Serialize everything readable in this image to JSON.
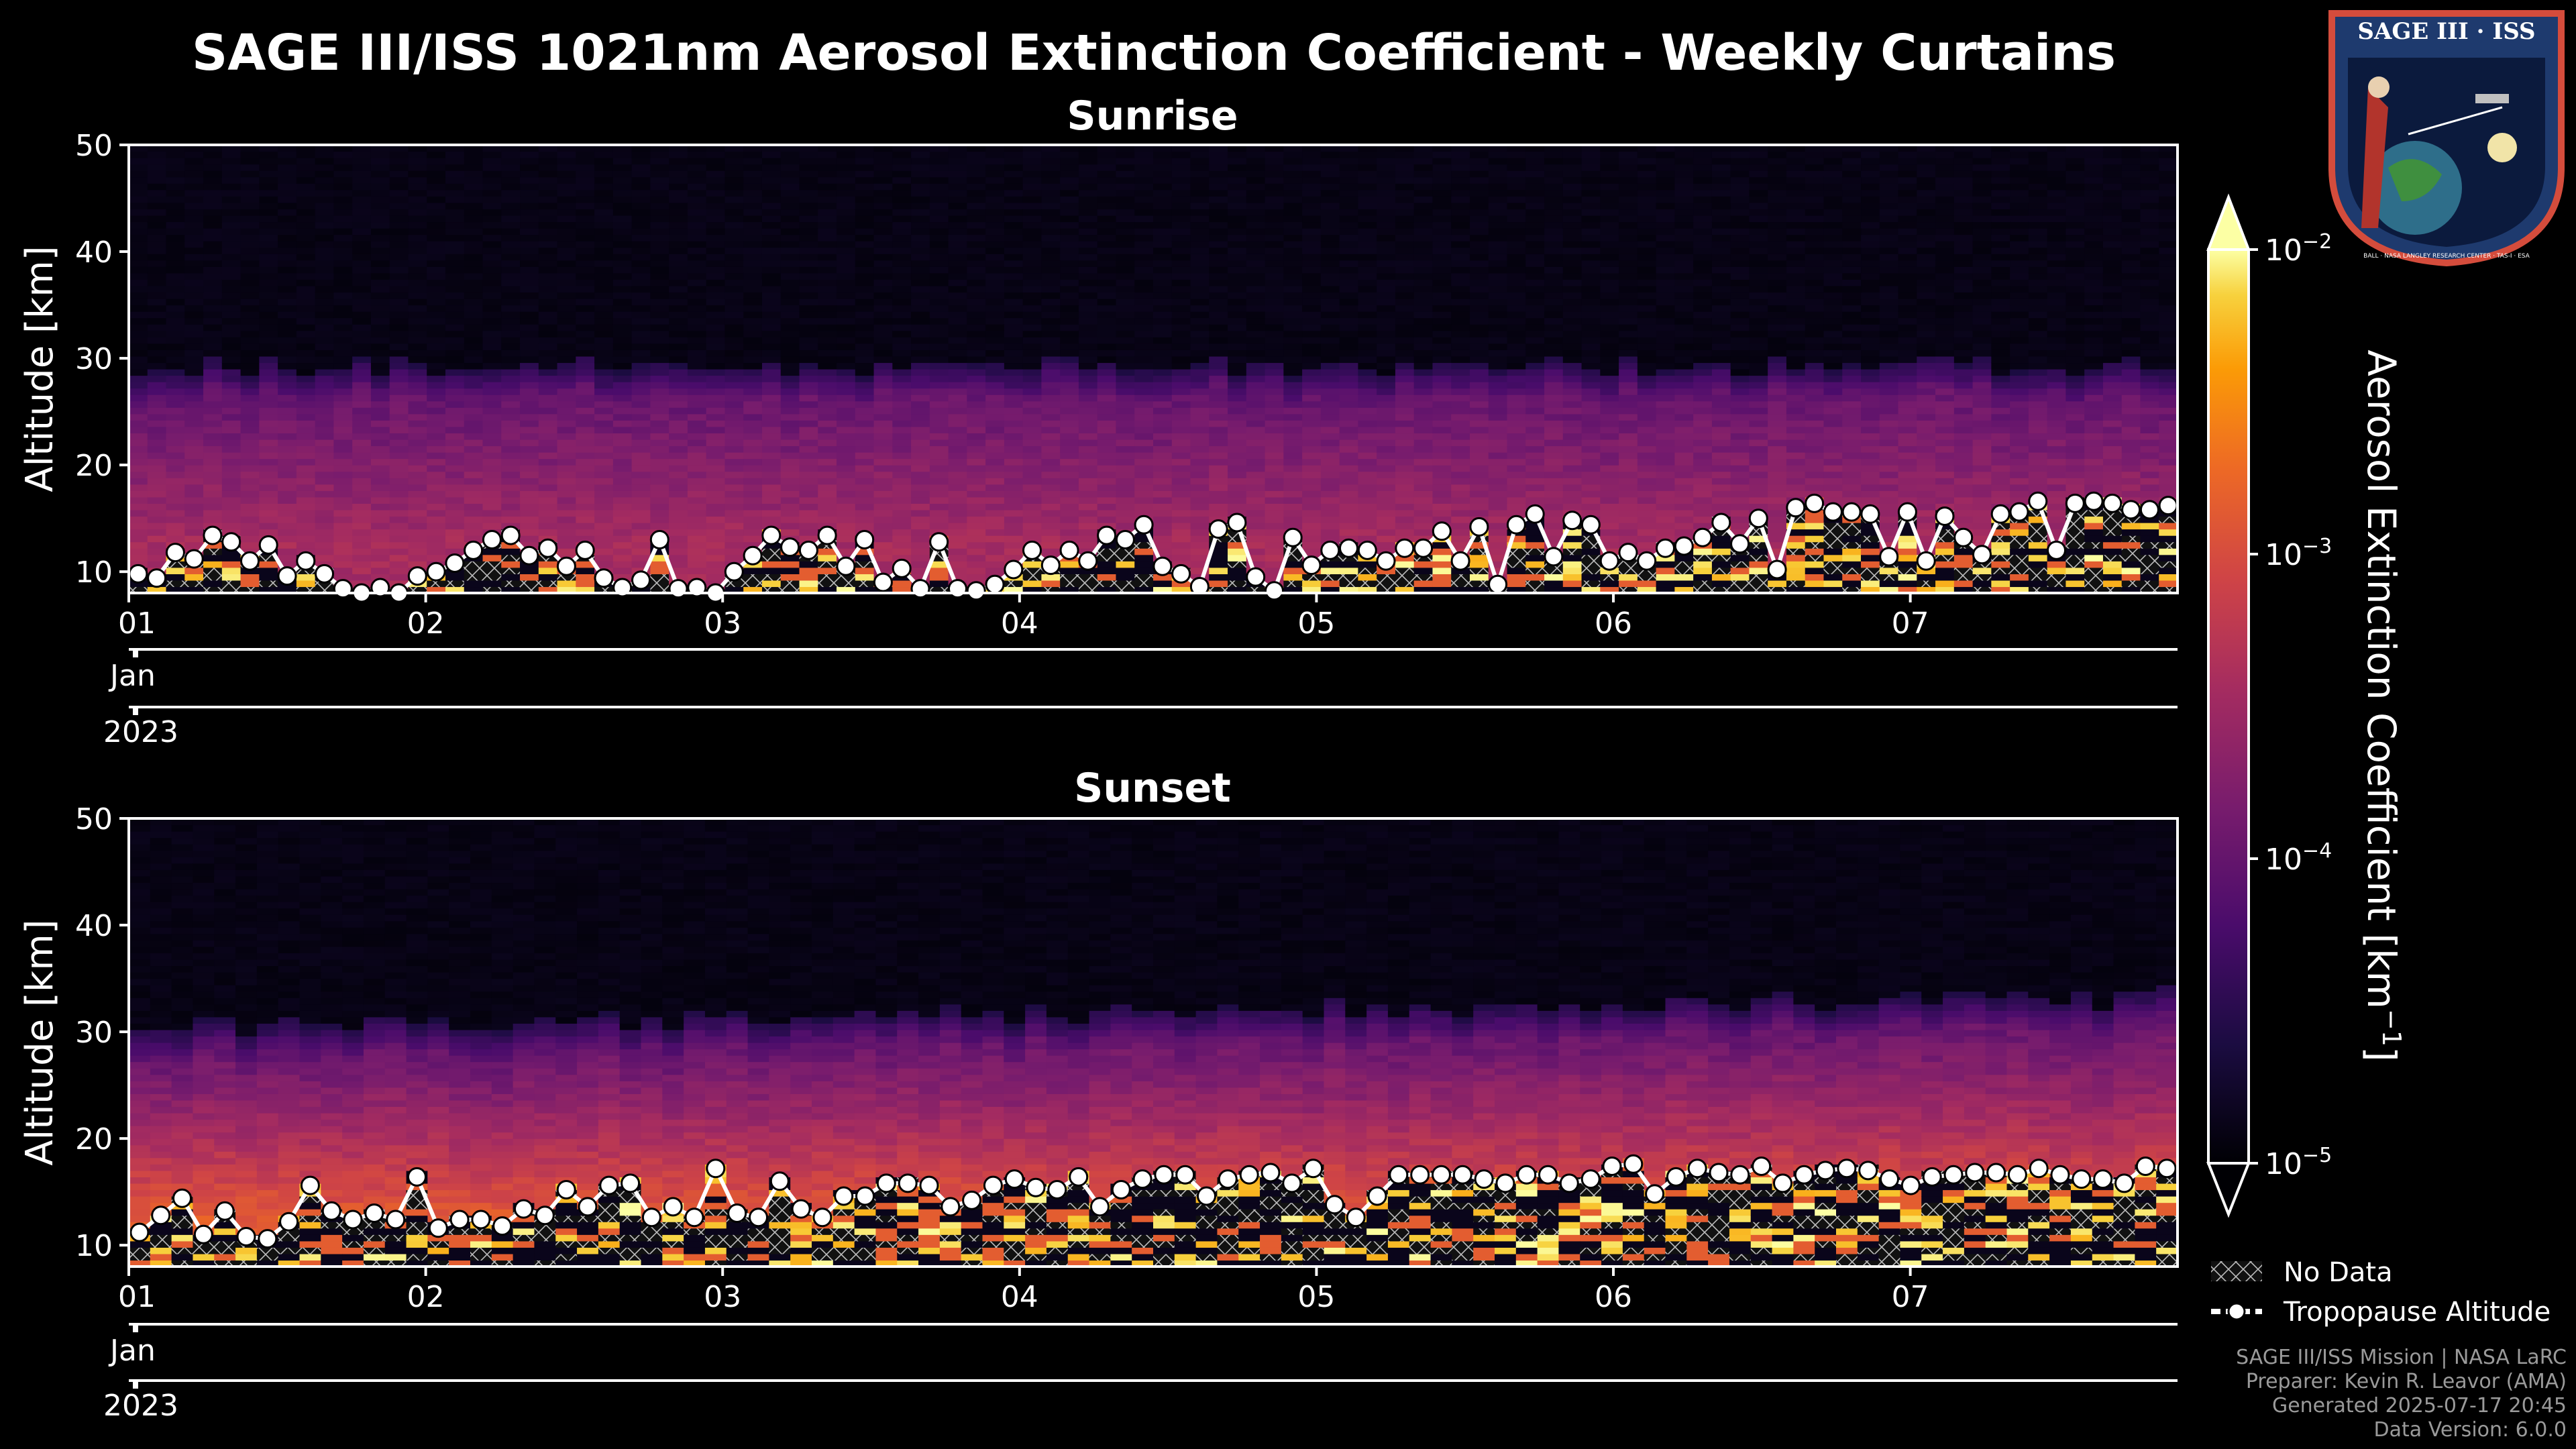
{
  "header": {
    "title": "SAGE III/ISS 1021nm Aerosol Extinction Coefficient - Weekly Curtains"
  },
  "logo": {
    "text": "SAGE III · ISS",
    "subtext": "BALL · NASA LANGLEY RESEARCH CENTER · TAS-I · ESA"
  },
  "footer": {
    "lines": [
      "SAGE III/ISS Mission | NASA LaRC",
      "Preparer: Kevin R. Leavor (AMA)",
      "Generated 2025-07-17 20:45",
      "Data Version: 6.0.0"
    ]
  },
  "legend": {
    "no_data": "No Data",
    "tropopause": "Tropopause Altitude"
  },
  "colors": {
    "background": "#000000",
    "tropopause_marker": "#ffffff",
    "hatch": "#d0d0d0"
  },
  "chart_data": [
    {
      "type": "heatmap",
      "title": "Sunrise",
      "ylabel": "Altitude [km]",
      "ylim": [
        8,
        50
      ],
      "yticks": [
        10,
        20,
        30,
        40,
        50
      ],
      "xlim": [
        1,
        7.9
      ],
      "xticks": [
        "01",
        "02",
        "03",
        "04",
        "05",
        "06",
        "07"
      ],
      "month_label": "Jan",
      "year_label": "2023",
      "aerosol_layer_top_km": 26,
      "aerosol_layer_peak": "purple-red (~3e-4 to 6e-4 km^-1)",
      "tropopause_altitude_km": [
        9.8,
        9.4,
        11.8,
        11.2,
        13.4,
        12.8,
        11.0,
        12.5,
        9.6,
        11.0,
        9.8,
        8.4,
        8.0,
        8.5,
        7.8,
        9.6,
        10.0,
        10.8,
        12.0,
        13.0,
        13.4,
        11.5,
        12.2,
        10.5,
        12.0,
        9.4,
        8.5,
        9.2,
        13.0,
        8.4,
        8.5,
        8.0,
        10.0,
        11.5,
        13.4,
        12.3,
        12.0,
        13.4,
        10.5,
        13.0,
        9.0,
        10.3,
        8.4,
        12.8,
        8.4,
        8.2,
        8.8,
        10.2,
        12.0,
        10.6,
        12.0,
        11.0,
        13.4,
        13.0,
        14.4,
        10.5,
        9.8,
        8.6,
        14.0,
        14.6,
        9.5,
        8.2,
        13.2,
        10.6,
        12.0,
        12.2,
        12.0,
        11.0,
        12.2,
        12.2,
        13.8,
        11.0,
        14.2,
        8.8,
        14.4,
        15.4,
        11.4,
        14.8,
        14.4,
        11.0,
        11.8,
        11.0,
        12.2,
        12.4,
        13.2,
        14.6,
        12.6,
        15.0,
        10.2,
        16.0,
        16.4,
        15.6,
        15.6,
        15.4,
        11.4,
        15.6,
        11.0,
        15.2,
        13.2,
        11.6,
        15.4,
        15.6,
        16.6,
        12.0,
        16.4,
        16.6,
        16.4,
        15.8,
        15.8,
        16.2
      ]
    },
    {
      "type": "heatmap",
      "title": "Sunset",
      "ylabel": "Altitude [km]",
      "ylim": [
        8,
        50
      ],
      "yticks": [
        10,
        20,
        30,
        40,
        50
      ],
      "xlim": [
        1,
        7.9
      ],
      "xticks": [
        "01",
        "02",
        "03",
        "04",
        "05",
        "06",
        "07"
      ],
      "month_label": "Jan",
      "year_label": "2023",
      "aerosol_layer_top_km": 28,
      "aerosol_layer_peak": "orange (~1e-3 to 2e-3 km^-1)",
      "tropopause_altitude_km": [
        11.2,
        12.8,
        14.4,
        11.0,
        13.2,
        10.8,
        10.6,
        12.2,
        15.6,
        13.2,
        12.4,
        13.0,
        12.4,
        16.4,
        11.6,
        12.4,
        12.4,
        11.8,
        13.4,
        12.8,
        15.2,
        13.6,
        15.6,
        15.8,
        12.6,
        13.6,
        12.6,
        17.2,
        13.0,
        12.6,
        16.0,
        13.4,
        12.6,
        14.6,
        14.6,
        15.8,
        15.8,
        15.6,
        13.6,
        14.2,
        15.6,
        16.2,
        15.4,
        15.2,
        16.4,
        13.6,
        15.2,
        16.2,
        16.6,
        16.6,
        14.6,
        16.2,
        16.6,
        16.8,
        15.8,
        17.2,
        13.8,
        12.6,
        14.6,
        16.6,
        16.6,
        16.6,
        16.6,
        16.2,
        15.8,
        16.6,
        16.6,
        15.8,
        16.2,
        17.4,
        17.6,
        14.8,
        16.4,
        17.2,
        16.8,
        16.6,
        17.4,
        15.8,
        16.6,
        17.0,
        17.2,
        17.0,
        16.2,
        15.6,
        16.4,
        16.6,
        16.8,
        16.8,
        16.6,
        17.2,
        16.6,
        16.2,
        16.2,
        15.8,
        17.4,
        17.2
      ]
    }
  ],
  "colorbar": {
    "label": "Aerosol Extinction Coefficient [km",
    "label_exponent": "−1",
    "label_close": "]",
    "scale": "log",
    "range": [
      1e-05,
      0.01
    ],
    "tick_base": [
      "10",
      "10",
      "10",
      "10"
    ],
    "tick_exponents": [
      "−5",
      "−4",
      "−3",
      "−2"
    ],
    "colormap": "inferno"
  }
}
